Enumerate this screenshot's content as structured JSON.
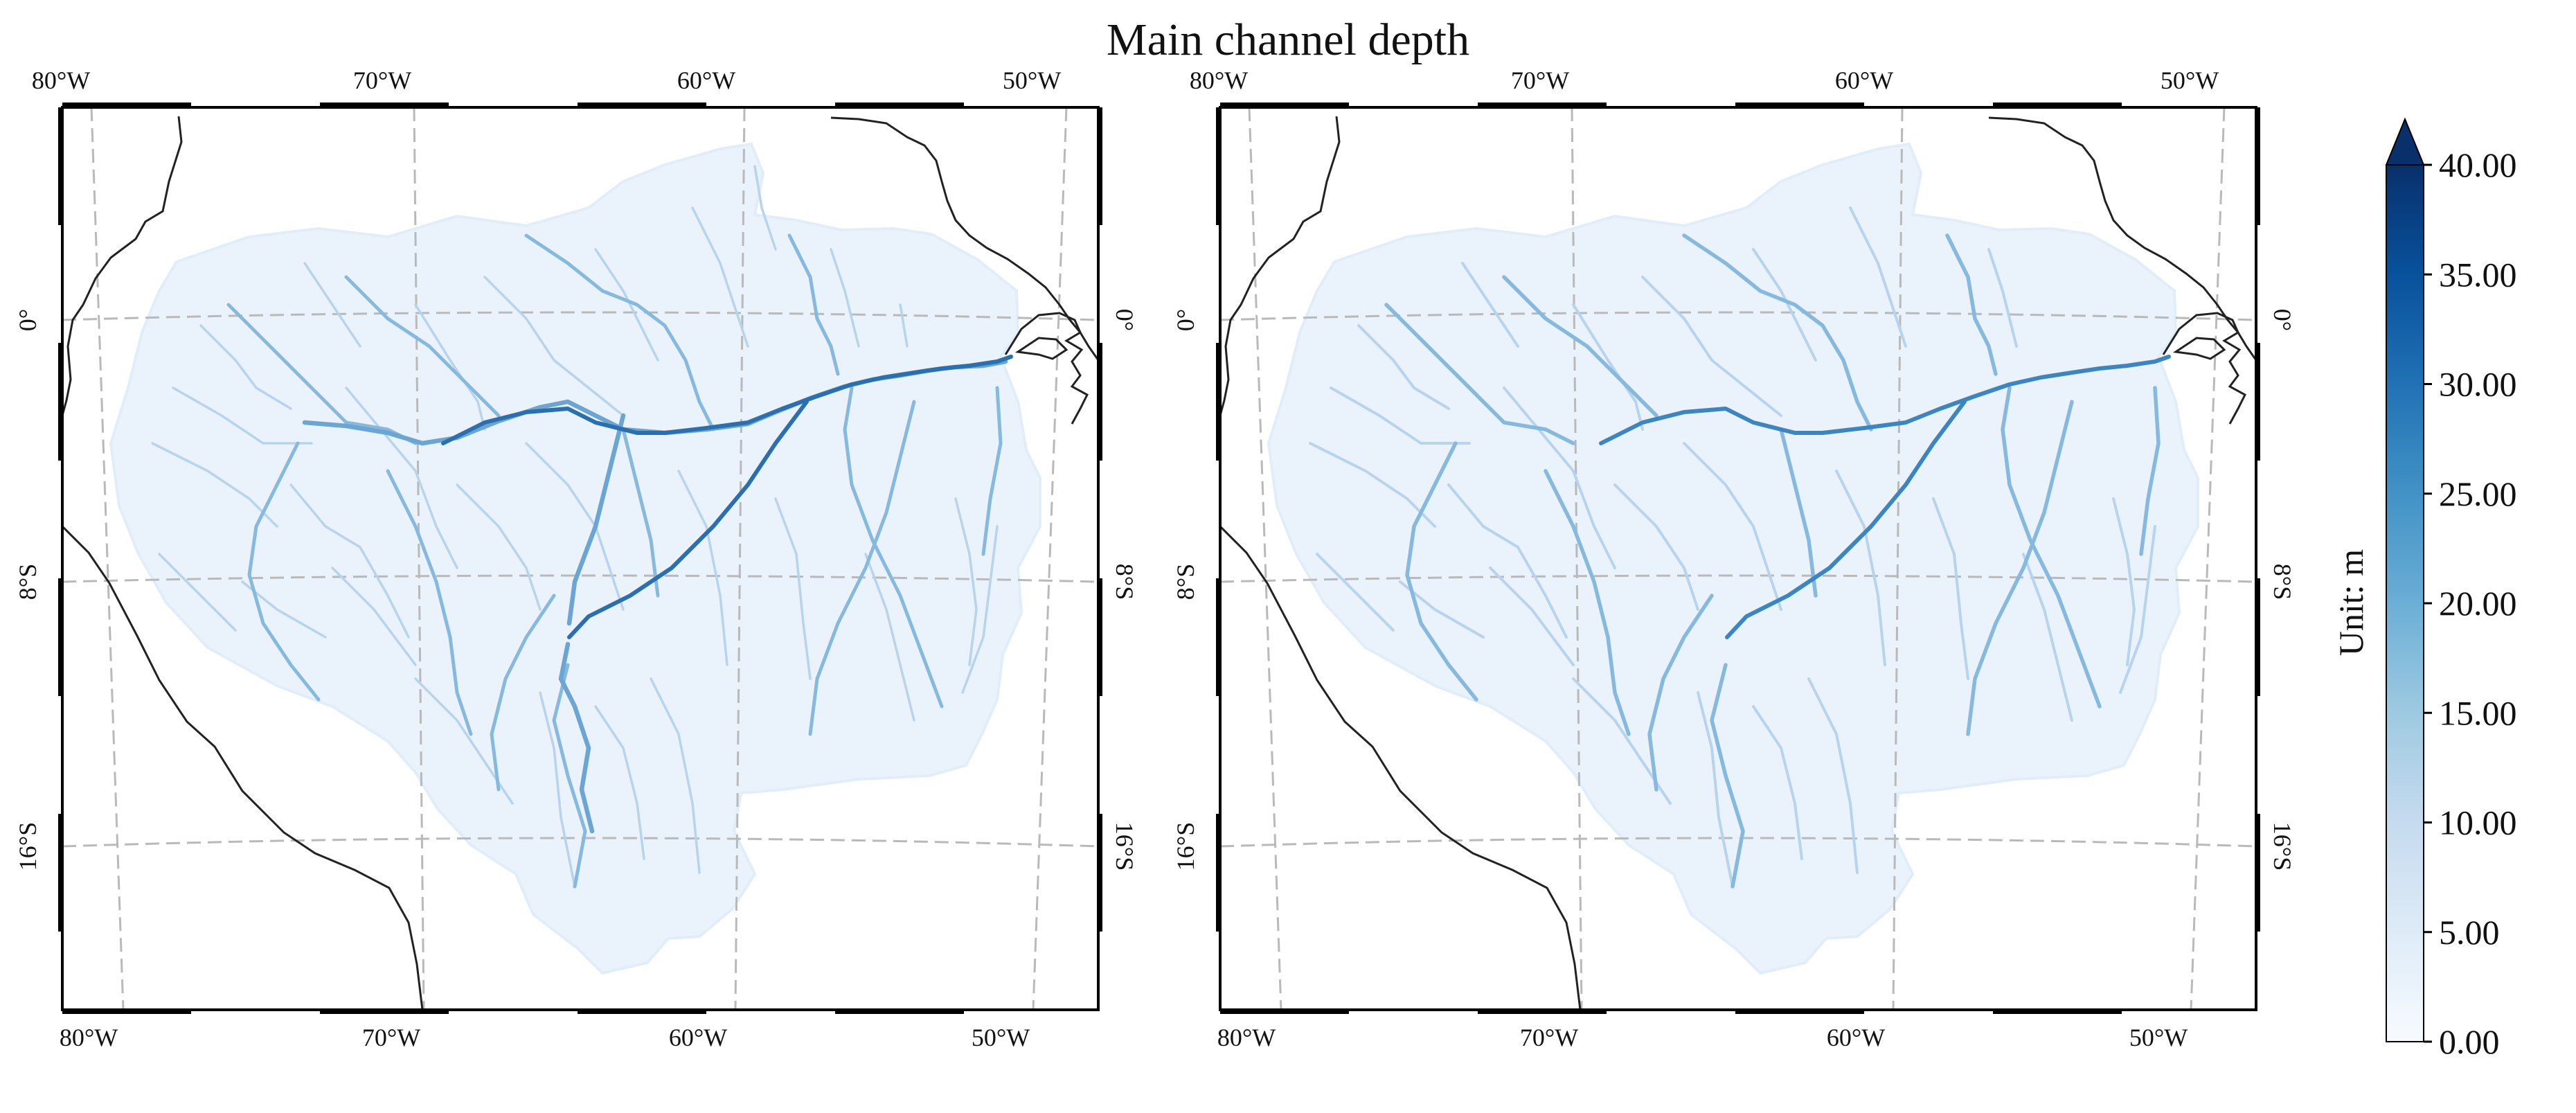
{
  "title": "Main channel depth",
  "maps": [
    {
      "lon_labels_top": [
        "80°W",
        "70°W",
        "60°W",
        "50°W"
      ],
      "lon_labels_bottom": [
        "80°W",
        "70°W",
        "60°W",
        "50°W"
      ],
      "lat_labels_left": [
        "0°",
        "8°S",
        "16°S"
      ],
      "lat_labels_right": [
        "0°",
        "8°S",
        "16°S"
      ]
    },
    {
      "lon_labels_top": [
        "80°W",
        "70°W",
        "60°W",
        "50°W"
      ],
      "lon_labels_bottom": [
        "80°W",
        "70°W",
        "60°W",
        "50°W"
      ],
      "lat_labels_left": [
        "0°",
        "8°S",
        "16°S"
      ],
      "lat_labels_right": [
        "0°",
        "8°S",
        "16°S"
      ]
    }
  ],
  "colorbar": {
    "label": "Unit: m",
    "ticks": [
      "40.00",
      "35.00",
      "30.00",
      "25.00",
      "20.00",
      "15.00",
      "10.00",
      "5.00",
      "0.00"
    ],
    "range": [
      0,
      40
    ],
    "extend": "max",
    "colormap": "Blues",
    "colors": [
      "#f7fbff",
      "#deebf7",
      "#c6dbef",
      "#9ecae1",
      "#6baed6",
      "#4292c6",
      "#2171b5",
      "#08519c",
      "#08306b"
    ]
  },
  "colors": {
    "basin_fill": "#eaf3fc",
    "minor_river": "#b7d4ee",
    "tributary": "#86b9de",
    "main_left": "#2a6fb0",
    "main_right": "#3c85c3",
    "gridline": "#b9b9b9",
    "coastline": "#222222"
  }
}
